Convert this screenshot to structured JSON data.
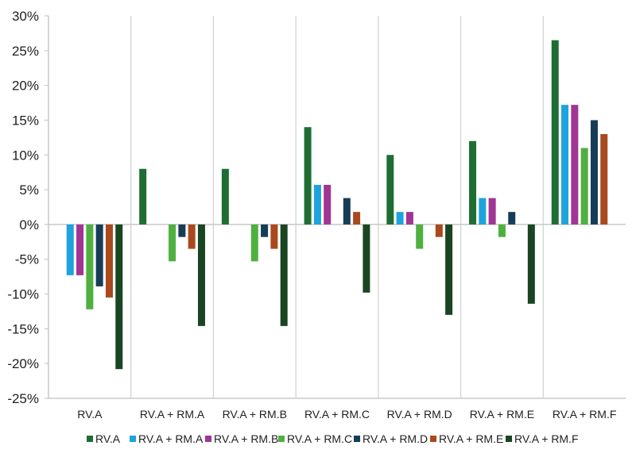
{
  "chart_data": {
    "type": "bar",
    "title": "",
    "xlabel": "",
    "ylabel": "",
    "ylim": [
      -25,
      30
    ],
    "yticks": [
      30,
      25,
      20,
      15,
      10,
      5,
      0,
      -5,
      -10,
      -15,
      -20,
      -25
    ],
    "ytick_labels": [
      "30%",
      "25%",
      "20%",
      "15%",
      "10%",
      "5%",
      "0%",
      "-5%",
      "-10%",
      "-15%",
      "-20%",
      "-25%"
    ],
    "grid": "vertical category dividers",
    "legend_position": "bottom",
    "categories": [
      "RV.A",
      "RV.A + RM.A",
      "RV.A + RM.B",
      "RV.A + RM.C",
      "RV.A + RM.D",
      "RV.A + RM.E",
      "RV.A + RM.F"
    ],
    "series": [
      {
        "name": "RV.A",
        "color": "#1e6e34",
        "values": [
          0,
          8,
          8,
          14,
          10,
          12,
          26.5
        ]
      },
      {
        "name": "RV.A + RM.A",
        "color": "#1ea3dc",
        "values": [
          -7.3,
          0,
          0,
          5.7,
          1.8,
          3.8,
          17.2
        ]
      },
      {
        "name": "RV.A + RM.B",
        "color": "#a03594",
        "values": [
          -7.3,
          0,
          0,
          5.7,
          1.8,
          3.8,
          17.2
        ]
      },
      {
        "name": "RV.A + RM.C",
        "color": "#4fb040",
        "values": [
          -12.2,
          -5.3,
          -5.3,
          0,
          -3.5,
          -1.8,
          11
        ]
      },
      {
        "name": "RV.A + RM.D",
        "color": "#163d57",
        "values": [
          -8.9,
          -1.8,
          -1.8,
          3.8,
          0,
          1.8,
          15
        ]
      },
      {
        "name": "RV.A + RM.E",
        "color": "#a84a1e",
        "values": [
          -10.5,
          -3.5,
          -3.5,
          1.8,
          -1.8,
          0,
          13
        ]
      },
      {
        "name": "RV.A + RM.F",
        "color": "#1a4522",
        "values": [
          -20.8,
          -14.6,
          -14.6,
          -9.8,
          -13,
          -11.4,
          0
        ]
      }
    ]
  }
}
